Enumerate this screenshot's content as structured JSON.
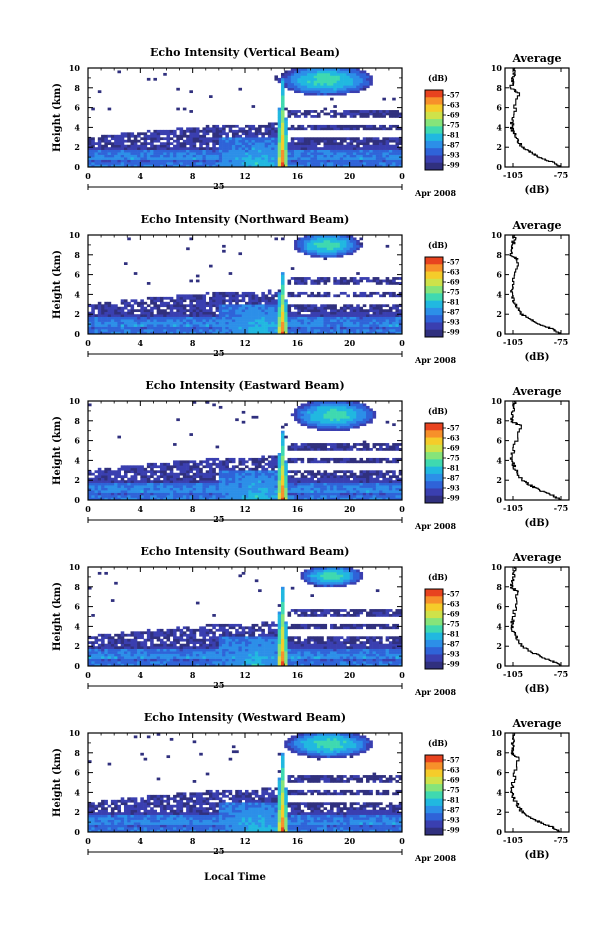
{
  "figure": {
    "x_axis_label": "Local Time",
    "date_day": "25",
    "date_month_year": "Apr 2008",
    "avg_title": "Average",
    "avg_xlabel": "(dB)",
    "colorbar_unit": "(dB)",
    "colorbar_ticks": [
      "-57",
      "-63",
      "-69",
      "-75",
      "-81",
      "-87",
      "-93",
      "-99"
    ],
    "colormap": [
      "#30307e",
      "#3a3fb0",
      "#2f63d8",
      "#2c8fe8",
      "#21b8e0",
      "#3fd9b0",
      "#86e47a",
      "#cfe24a",
      "#f5cc2a",
      "#f7902a",
      "#e8431f"
    ]
  },
  "panels": [
    {
      "title": "Echo Intensity (Vertical Beam)",
      "ylabel": "Height (km)",
      "y_ticks": [
        "0",
        "2",
        "4",
        "6",
        "8",
        "10"
      ],
      "x_ticks": [
        "0",
        "4",
        "8",
        "12",
        "16",
        "20",
        "0"
      ],
      "avg_x_ticks": [
        "-105",
        "-75"
      ],
      "avg_y_ticks": [
        "0",
        "2",
        "4",
        "6",
        "8",
        "10"
      ]
    },
    {
      "title": "Echo Intensity (Northward Beam)",
      "ylabel": "Height (km)",
      "y_ticks": [
        "0",
        "2",
        "4",
        "6",
        "8",
        "10"
      ],
      "x_ticks": [
        "0",
        "4",
        "8",
        "12",
        "16",
        "20",
        "0"
      ],
      "avg_x_ticks": [
        "-105",
        "-75"
      ],
      "avg_y_ticks": [
        "0",
        "2",
        "4",
        "6",
        "8",
        "10"
      ]
    },
    {
      "title": "Echo Intensity (Eastward Beam)",
      "ylabel": "Height (km)",
      "y_ticks": [
        "0",
        "2",
        "4",
        "6",
        "8",
        "10"
      ],
      "x_ticks": [
        "0",
        "4",
        "8",
        "12",
        "16",
        "20",
        "0"
      ],
      "avg_x_ticks": [
        "-105",
        "-75"
      ],
      "avg_y_ticks": [
        "0",
        "2",
        "4",
        "6",
        "8",
        "10"
      ]
    },
    {
      "title": "Echo Intensity (Southward Beam)",
      "ylabel": "Height (km)",
      "y_ticks": [
        "0",
        "2",
        "4",
        "6",
        "8",
        "10"
      ],
      "x_ticks": [
        "0",
        "4",
        "8",
        "12",
        "16",
        "20",
        "0"
      ],
      "avg_x_ticks": [
        "-105",
        "-75"
      ],
      "avg_y_ticks": [
        "0",
        "2",
        "4",
        "6",
        "8",
        "10"
      ]
    },
    {
      "title": "Echo Intensity (Westward Beam)",
      "ylabel": "Height (km)",
      "y_ticks": [
        "0",
        "2",
        "4",
        "6",
        "8",
        "10"
      ],
      "x_ticks": [
        "0",
        "4",
        "8",
        "12",
        "16",
        "20",
        "0"
      ],
      "avg_x_ticks": [
        "-105",
        "-75"
      ],
      "avg_y_ticks": [
        "0",
        "2",
        "4",
        "6",
        "8",
        "10"
      ]
    }
  ],
  "chart_data": [
    {
      "type": "heatmap",
      "title": "Echo Intensity (Vertical Beam)",
      "xlabel": "Local Time",
      "ylabel": "Height (km)",
      "xlim": [
        0,
        24
      ],
      "ylim": [
        0,
        10
      ],
      "x_unit": "hour (25 Apr 2008)",
      "color_range": [
        -99,
        -57
      ],
      "features": [
        {
          "layer": "boundary layer",
          "height_km": [
            0,
            2
          ],
          "time_h": [
            0,
            24
          ],
          "dB": [
            -99,
            -87
          ]
        },
        {
          "layer": "mid-level echo",
          "height_km": [
            2,
            4.5
          ],
          "time_h": [
            0,
            24
          ],
          "dB": [
            -99,
            -93
          ]
        },
        {
          "layer": "convective column",
          "height_km": [
            0,
            9
          ],
          "time_h": [
            14.5,
            15.2
          ],
          "dB": [
            -87,
            -57
          ]
        },
        {
          "layer": "upper cloud",
          "height_km": [
            7,
            10
          ],
          "time_h": [
            15,
            22
          ],
          "dB": [
            -93,
            -81
          ]
        }
      ]
    },
    {
      "type": "line",
      "title": "Average",
      "xlabel": "(dB)",
      "ylabel": "Height (km)",
      "xlim": [
        -110,
        -70
      ],
      "ylim": [
        0,
        10
      ],
      "series": [
        {
          "x": [
            -75,
            -80,
            -88,
            -94,
            -99,
            -103,
            -106,
            -105,
            -102,
            -106,
            -105,
            -104
          ],
          "y": [
            0,
            0.5,
            1,
            1.5,
            2,
            3,
            4,
            5,
            7.5,
            8,
            9,
            10
          ]
        }
      ]
    },
    {
      "type": "heatmap",
      "title": "Echo Intensity (Northward Beam)",
      "xlabel": "Local Time",
      "ylabel": "Height (km)",
      "xlim": [
        0,
        24
      ],
      "ylim": [
        0,
        10
      ],
      "x_unit": "hour (25 Apr 2008)",
      "color_range": [
        -99,
        -57
      ],
      "features": [
        {
          "layer": "boundary layer",
          "height_km": [
            0,
            2
          ],
          "time_h": [
            0,
            24
          ],
          "dB": [
            -99,
            -87
          ]
        },
        {
          "layer": "mid-level echo",
          "height_km": [
            2,
            4.5
          ],
          "time_h": [
            0,
            24
          ],
          "dB": [
            -99,
            -93
          ]
        },
        {
          "layer": "convective column",
          "height_km": [
            0,
            6
          ],
          "time_h": [
            14.5,
            15.2
          ],
          "dB": [
            -87,
            -57
          ]
        },
        {
          "layer": "upper cloud",
          "height_km": [
            7,
            10
          ],
          "time_h": [
            16,
            21
          ],
          "dB": [
            -93,
            -81
          ]
        }
      ]
    },
    {
      "type": "line",
      "title": "Average",
      "xlabel": "(dB)",
      "ylabel": "Height (km)",
      "xlim": [
        -110,
        -70
      ],
      "ylim": [
        0,
        10
      ],
      "series": [
        {
          "x": [
            -75,
            -80,
            -88,
            -94,
            -99,
            -103,
            -106,
            -105,
            -102,
            -106,
            -105,
            -104
          ],
          "y": [
            0,
            0.5,
            1,
            1.5,
            2,
            3,
            4,
            5,
            7.5,
            8,
            9,
            10
          ]
        }
      ]
    },
    {
      "type": "heatmap",
      "title": "Echo Intensity (Eastward Beam)",
      "xlabel": "Local Time",
      "ylabel": "Height (km)",
      "xlim": [
        0,
        24
      ],
      "ylim": [
        0,
        10
      ],
      "x_unit": "hour (25 Apr 2008)",
      "color_range": [
        -99,
        -57
      ],
      "features": [
        {
          "layer": "boundary layer",
          "height_km": [
            0,
            2
          ],
          "time_h": [
            0,
            24
          ],
          "dB": [
            -99,
            -87
          ]
        },
        {
          "layer": "mid-level echo",
          "height_km": [
            2,
            4.5
          ],
          "time_h": [
            0,
            24
          ],
          "dB": [
            -99,
            -93
          ]
        },
        {
          "layer": "convective column",
          "height_km": [
            0,
            7
          ],
          "time_h": [
            14.5,
            15.2
          ],
          "dB": [
            -87,
            -57
          ]
        },
        {
          "layer": "upper cloud",
          "height_km": [
            7,
            10
          ],
          "time_h": [
            16,
            22
          ],
          "dB": [
            -93,
            -81
          ]
        }
      ]
    },
    {
      "type": "line",
      "title": "Average",
      "xlabel": "(dB)",
      "ylabel": "Height (km)",
      "xlim": [
        -110,
        -70
      ],
      "ylim": [
        0,
        10
      ],
      "series": [
        {
          "x": [
            -75,
            -80,
            -88,
            -94,
            -99,
            -103,
            -106,
            -105,
            -100,
            -106,
            -105,
            -104
          ],
          "y": [
            0,
            0.5,
            1,
            1.5,
            2,
            3,
            4,
            5,
            7.5,
            8,
            9,
            10
          ]
        }
      ]
    },
    {
      "type": "heatmap",
      "title": "Echo Intensity (Southward Beam)",
      "xlabel": "Local Time",
      "ylabel": "Height (km)",
      "xlim": [
        0,
        24
      ],
      "ylim": [
        0,
        10
      ],
      "x_unit": "hour (25 Apr 2008)",
      "color_range": [
        -99,
        -57
      ],
      "features": [
        {
          "layer": "boundary layer",
          "height_km": [
            0,
            2
          ],
          "time_h": [
            0,
            24
          ],
          "dB": [
            -99,
            -87
          ]
        },
        {
          "layer": "mid-level echo",
          "height_km": [
            2,
            4.5
          ],
          "time_h": [
            0,
            24
          ],
          "dB": [
            -99,
            -93
          ]
        },
        {
          "layer": "convective column",
          "height_km": [
            0,
            8
          ],
          "time_h": [
            14.5,
            15.2
          ],
          "dB": [
            -87,
            -57
          ]
        },
        {
          "layer": "upper cloud",
          "height_km": [
            7,
            10
          ],
          "time_h": [
            16,
            21
          ],
          "dB": [
            -93,
            -87
          ]
        }
      ]
    },
    {
      "type": "line",
      "title": "Average",
      "xlabel": "(dB)",
      "ylabel": "Height (km)",
      "xlim": [
        -110,
        -70
      ],
      "ylim": [
        0,
        10
      ],
      "series": [
        {
          "x": [
            -75,
            -80,
            -88,
            -94,
            -99,
            -103,
            -106,
            -105,
            -102,
            -106,
            -105,
            -104
          ],
          "y": [
            0,
            0.5,
            1,
            1.5,
            2,
            3,
            4,
            5,
            7.5,
            8,
            9,
            10
          ]
        }
      ]
    },
    {
      "type": "heatmap",
      "title": "Echo Intensity (Westward Beam)",
      "xlabel": "Local Time",
      "ylabel": "Height (km)",
      "xlim": [
        0,
        24
      ],
      "ylim": [
        0,
        10
      ],
      "x_unit": "hour (25 Apr 2008)",
      "color_range": [
        -99,
        -57
      ],
      "features": [
        {
          "layer": "boundary layer",
          "height_km": [
            0,
            2
          ],
          "time_h": [
            0,
            24
          ],
          "dB": [
            -99,
            -87
          ]
        },
        {
          "layer": "mid-level echo",
          "height_km": [
            2,
            4.5
          ],
          "time_h": [
            0,
            24
          ],
          "dB": [
            -99,
            -93
          ]
        },
        {
          "layer": "convective column",
          "height_km": [
            0,
            8
          ],
          "time_h": [
            14.5,
            15.2
          ],
          "dB": [
            -87,
            -57
          ]
        },
        {
          "layer": "upper cloud",
          "height_km": [
            7,
            10
          ],
          "time_h": [
            15,
            22
          ],
          "dB": [
            -93,
            -81
          ]
        }
      ]
    },
    {
      "type": "line",
      "title": "Average",
      "xlabel": "(dB)",
      "ylabel": "Height (km)",
      "xlim": [
        -110,
        -70
      ],
      "ylim": [
        0,
        10
      ],
      "series": [
        {
          "x": [
            -75,
            -80,
            -88,
            -94,
            -99,
            -103,
            -106,
            -105,
            -102,
            -106,
            -105,
            -104
          ],
          "y": [
            0,
            0.5,
            1,
            1.5,
            2,
            3,
            4,
            5,
            7.5,
            8,
            9,
            10
          ]
        }
      ]
    }
  ]
}
